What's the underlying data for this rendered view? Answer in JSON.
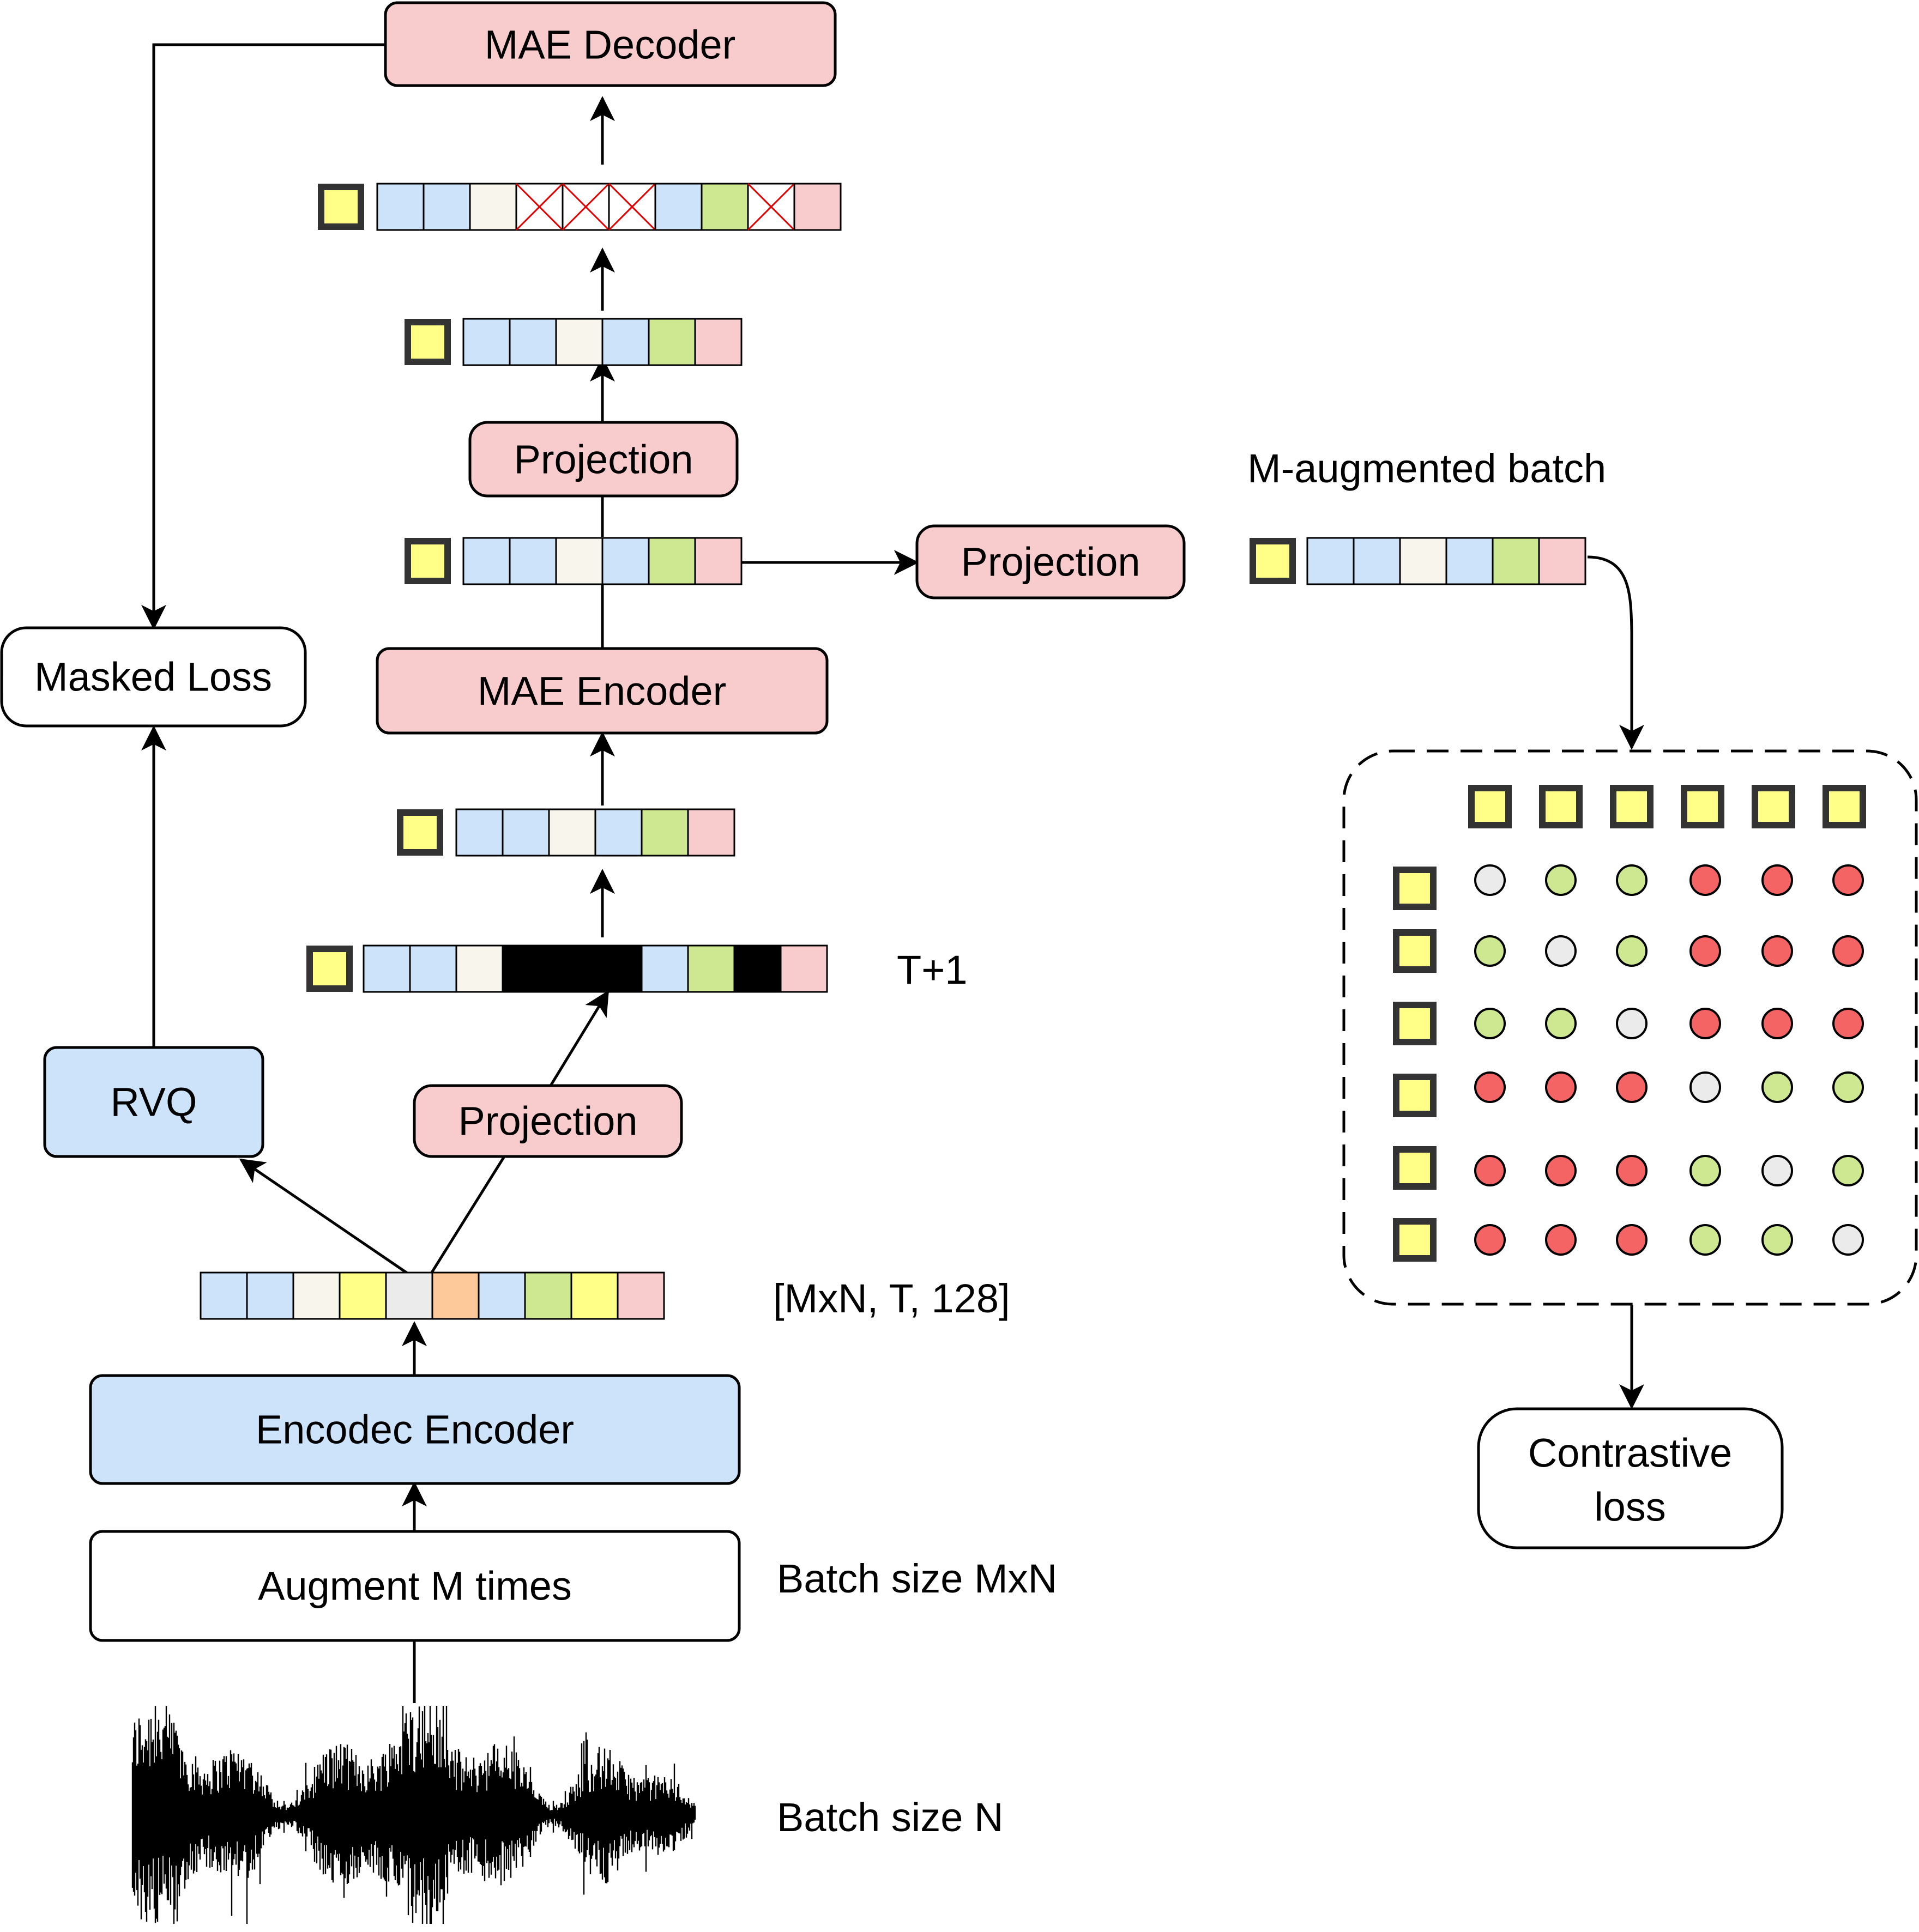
{
  "colors": {
    "blue_box": "#cce3fa",
    "pink_box": "#f8cccc",
    "white_box": "#ffffff",
    "token_blue": "#cce3fa",
    "token_cream": "#f7f5ec",
    "token_green": "#cde891",
    "token_pink": "#f8cccc",
    "token_yellow": "#ffff88",
    "token_gray": "#ebebeb",
    "token_orange": "#fdc99a",
    "token_black": "#000000",
    "dot_red": "#f56464",
    "dot_green": "#cde891",
    "dot_gray": "#ebebeb"
  },
  "boxes": {
    "mae_decoder": "MAE Decoder",
    "projection_top": "Projection",
    "projection_side": "Projection",
    "mae_encoder": "MAE Encoder",
    "projection_bottom": "Projection",
    "masked_loss": "Masked Loss",
    "rvq": "RVQ",
    "encodec_encoder": "Encodec Encoder",
    "augment": "Augment M times",
    "contrastive_loss_line1": "Contrastive",
    "contrastive_loss_line2": "loss"
  },
  "labels": {
    "m_augmented_batch": "M-augmented batch",
    "t_plus_1": "T+1",
    "shape": "[MxN, T, 128]",
    "batch_mxn": "Batch size MxN",
    "batch_n": "Batch size N"
  },
  "token_rows": {
    "encodec_output": [
      "blue",
      "blue",
      "cream",
      "yellow",
      "gray",
      "orange",
      "blue",
      "green",
      "yellow",
      "pink"
    ],
    "masked_input": [
      "blue",
      "blue",
      "cream",
      "black",
      "black",
      "black",
      "blue",
      "green",
      "black",
      "pink"
    ],
    "encoder_input": [
      "blue",
      "blue",
      "cream",
      "blue",
      "green",
      "pink"
    ],
    "encoder_output": [
      "blue",
      "blue",
      "cream",
      "blue",
      "green",
      "pink"
    ],
    "projected_output": [
      "blue",
      "blue",
      "cream",
      "blue",
      "green",
      "pink"
    ],
    "decoder_input": [
      "blue",
      "blue",
      "cream",
      "masked",
      "masked",
      "masked",
      "blue",
      "green",
      "masked",
      "pink"
    ],
    "m_augmented": [
      "blue",
      "blue",
      "cream",
      "blue",
      "green",
      "pink"
    ]
  },
  "similarity_matrix": [
    [
      "gray",
      "green",
      "green",
      "red",
      "red",
      "red"
    ],
    [
      "green",
      "gray",
      "green",
      "red",
      "red",
      "red"
    ],
    [
      "green",
      "green",
      "gray",
      "red",
      "red",
      "red"
    ],
    [
      "red",
      "red",
      "red",
      "gray",
      "green",
      "green"
    ],
    [
      "red",
      "red",
      "red",
      "green",
      "gray",
      "green"
    ],
    [
      "red",
      "red",
      "red",
      "green",
      "green",
      "gray"
    ]
  ]
}
